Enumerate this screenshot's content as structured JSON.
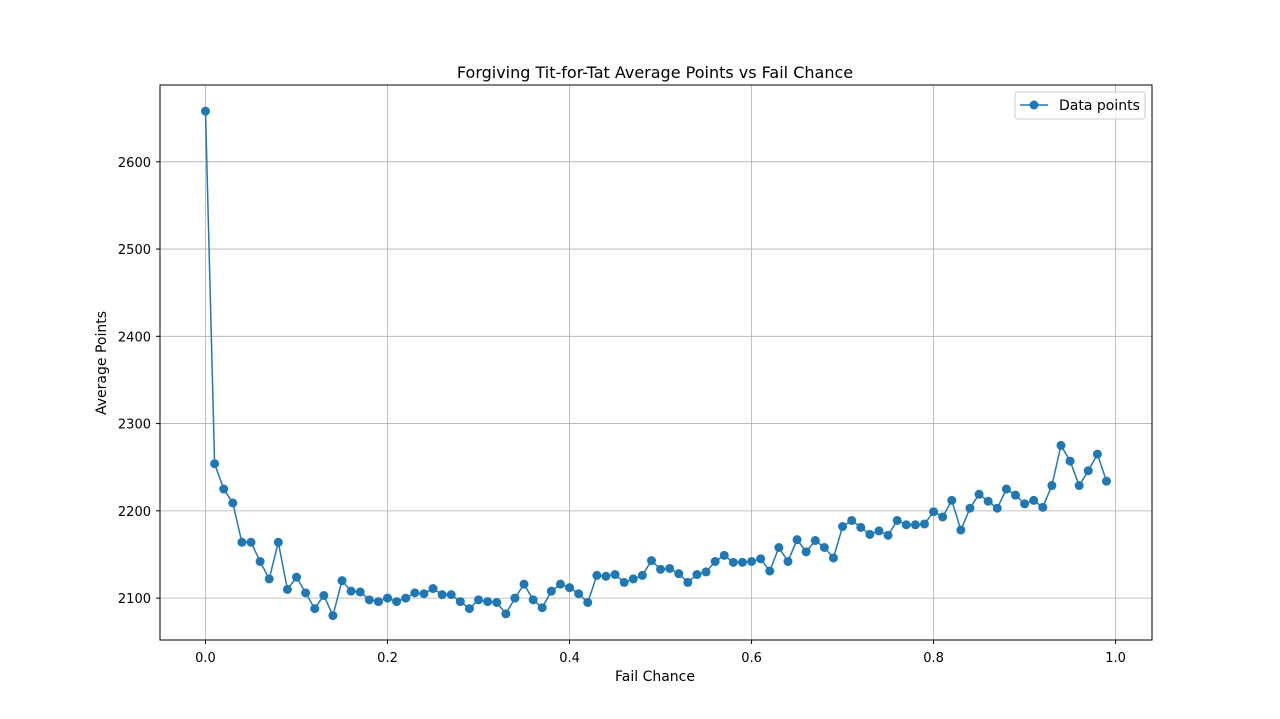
{
  "chart_data": {
    "type": "line",
    "title": "Forgiving Tit-for-Tat Average Points vs Fail Chance",
    "xlabel": "Fail Chance",
    "ylabel": "Average Points",
    "xlim": [
      -0.05,
      1.04
    ],
    "ylim": [
      2052,
      2688
    ],
    "xticks": [
      0.0,
      0.2,
      0.4,
      0.6,
      0.8,
      1.0
    ],
    "xtick_labels": [
      "0.0",
      "0.2",
      "0.4",
      "0.6",
      "0.8",
      "1.0"
    ],
    "yticks": [
      2100,
      2200,
      2300,
      2400,
      2500,
      2600
    ],
    "ytick_labels": [
      "2100",
      "2200",
      "2300",
      "2400",
      "2500",
      "2600"
    ],
    "grid": true,
    "legend_position": "upper-right",
    "color": "#1f77b4",
    "series": [
      {
        "name": "Data points",
        "marker": "circle",
        "x": [
          0.0,
          0.01,
          0.02,
          0.03,
          0.04,
          0.05,
          0.06,
          0.07,
          0.08,
          0.09,
          0.1,
          0.11,
          0.12,
          0.13,
          0.14,
          0.15,
          0.16,
          0.17,
          0.18,
          0.19,
          0.2,
          0.21,
          0.22,
          0.23,
          0.24,
          0.25,
          0.26,
          0.27,
          0.28,
          0.29,
          0.3,
          0.31,
          0.32,
          0.33,
          0.34,
          0.35,
          0.36,
          0.37,
          0.38,
          0.39,
          0.4,
          0.41,
          0.42,
          0.43,
          0.44,
          0.45,
          0.46,
          0.47,
          0.48,
          0.49,
          0.5,
          0.51,
          0.52,
          0.53,
          0.54,
          0.55,
          0.56,
          0.57,
          0.58,
          0.59,
          0.6,
          0.61,
          0.62,
          0.63,
          0.64,
          0.65,
          0.66,
          0.67,
          0.68,
          0.69,
          0.7,
          0.71,
          0.72,
          0.73,
          0.74,
          0.75,
          0.76,
          0.77,
          0.78,
          0.79,
          0.8,
          0.81,
          0.82,
          0.83,
          0.84,
          0.85,
          0.86,
          0.87,
          0.88,
          0.89,
          0.9,
          0.91,
          0.92,
          0.93,
          0.94,
          0.95,
          0.96,
          0.97,
          0.98,
          0.99
        ],
        "y": [
          2658,
          2254,
          2225,
          2209,
          2164,
          2164,
          2142,
          2122,
          2164,
          2110,
          2124,
          2106,
          2088,
          2103,
          2080,
          2120,
          2108,
          2107,
          2098,
          2096,
          2100,
          2096,
          2100,
          2106,
          2105,
          2111,
          2104,
          2104,
          2096,
          2088,
          2098,
          2096,
          2095,
          2082,
          2100,
          2116,
          2098,
          2089,
          2108,
          2116,
          2112,
          2105,
          2095,
          2126,
          2125,
          2127,
          2118,
          2122,
          2126,
          2143,
          2133,
          2134,
          2128,
          2118,
          2127,
          2130,
          2142,
          2149,
          2141,
          2141,
          2142,
          2145,
          2131,
          2158,
          2142,
          2167,
          2153,
          2166,
          2158,
          2146,
          2182,
          2189,
          2181,
          2173,
          2177,
          2172,
          2189,
          2184,
          2184,
          2185,
          2199,
          2193,
          2212,
          2178,
          2203,
          2219,
          2211,
          2203,
          2225,
          2218,
          2208,
          2212,
          2204,
          2229,
          2275,
          2257,
          2229,
          2246,
          2265,
          2234
        ]
      }
    ]
  }
}
